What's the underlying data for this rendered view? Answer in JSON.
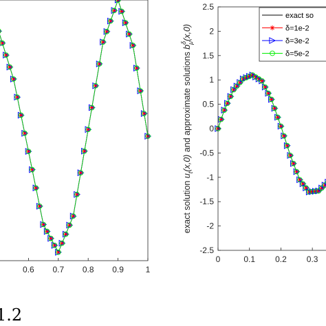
{
  "caption": "1.2",
  "chart_data": [
    {
      "type": "line",
      "xlim": [
        0.5,
        1.0
      ],
      "ylim": [
        -1.48,
        1.62
      ],
      "xticks": [
        "0.6",
        "0.7",
        "0.8",
        "0.9",
        "1"
      ],
      "xtick_values": [
        0.6,
        0.7,
        0.8,
        0.9,
        1.0
      ],
      "grid": false,
      "markers_x_start": 0.5,
      "markers_x_end": 1.0,
      "marker_step": 0.0125,
      "x": [
        0.5,
        0.55,
        0.6,
        0.65,
        0.7,
        0.75,
        0.8,
        0.85,
        0.9,
        0.95,
        1.0
      ],
      "y": [
        1.25,
        0.68,
        -0.18,
        -1.05,
        -1.38,
        -0.95,
        0.08,
        1.12,
        1.62,
        1.08,
        0.0
      ],
      "series": [
        {
          "name": "exact solution",
          "color": "#000000",
          "marker": "none"
        },
        {
          "name": "δ=1e-2",
          "color": "#ff0000",
          "marker": "star"
        },
        {
          "name": "δ=3e-2",
          "color": "#0000ff",
          "marker": "triangle-right"
        },
        {
          "name": "δ=5e-2",
          "color": "#00ee00",
          "marker": "circle"
        }
      ]
    },
    {
      "type": "line",
      "xlim": [
        0.0,
        0.35
      ],
      "ylim": [
        -2.5,
        2.5
      ],
      "xticks": [
        "0",
        "0.1",
        "0.2",
        "0.3"
      ],
      "xtick_values": [
        0.0,
        0.1,
        0.2,
        0.3
      ],
      "yticks": [
        "-2.5",
        "-2",
        "-1.5",
        "-1",
        "-0.5",
        "0",
        "0.5",
        "1",
        "1.5",
        "2",
        "2.5"
      ],
      "ytick_values": [
        -2.5,
        -2,
        -1.5,
        -1,
        -0.5,
        0,
        0.5,
        1,
        1.5,
        2,
        2.5
      ],
      "ylabel_main": "exact solution ",
      "ylabel_sym1": "u",
      "ylabel_sub1": "t",
      "ylabel_arg1": "(x,0)",
      "ylabel_mid": " and approximate solutions ",
      "ylabel_sym2": "b",
      "ylabel_sup2": "δ",
      "ylabel_sub2": "μ",
      "ylabel_arg2": "(x,0)",
      "grid": false,
      "legend_position": "top-right",
      "markers_x_start": 0.0,
      "markers_x_end": 0.35,
      "marker_step": 0.01,
      "x": [
        0.0,
        0.02,
        0.05,
        0.08,
        0.11,
        0.14,
        0.17,
        0.2,
        0.23,
        0.26,
        0.29,
        0.32,
        0.35
      ],
      "y": [
        0.0,
        0.38,
        0.8,
        1.02,
        1.1,
        0.98,
        0.6,
        0.05,
        -0.55,
        -1.05,
        -1.3,
        -1.28,
        -1.1
      ],
      "series": [
        {
          "name": "exact solution",
          "color": "#000000",
          "marker": "none"
        },
        {
          "name": "δ=1e-2",
          "color": "#ff0000",
          "marker": "star"
        },
        {
          "name": "δ=3e-2",
          "color": "#0000ff",
          "marker": "triangle-right"
        },
        {
          "name": "δ=5e-2",
          "color": "#00ee00",
          "marker": "circle"
        }
      ]
    }
  ],
  "legend": {
    "items": [
      {
        "label": "exact so",
        "color": "#000000",
        "marker": "none"
      },
      {
        "label": "δ=1e-2",
        "color": "#ff0000",
        "marker": "star"
      },
      {
        "label": "δ=3e-2",
        "color": "#0000ff",
        "marker": "triangle-right"
      },
      {
        "label": "δ=5e-2",
        "color": "#00ee00",
        "marker": "circle"
      }
    ]
  }
}
